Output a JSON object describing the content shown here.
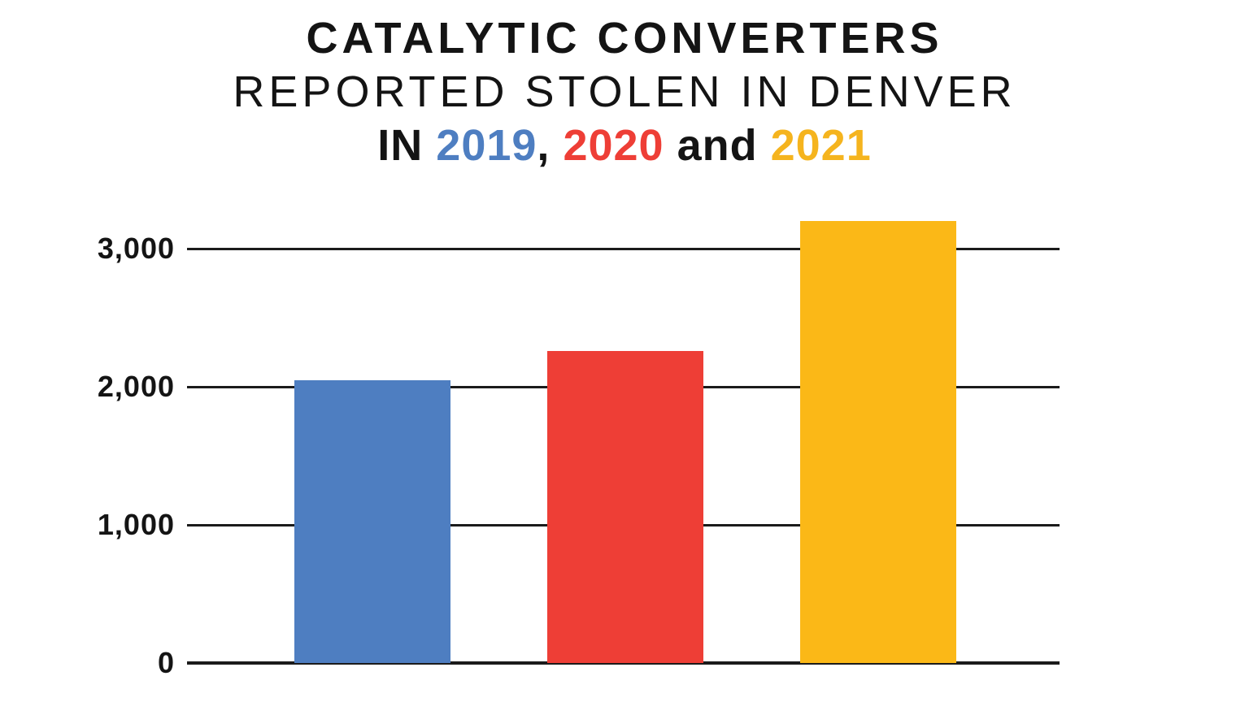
{
  "title": {
    "line1": "CATALYTIC CONVERTERS",
    "line2": "REPORTED STOLEN IN DENVER",
    "line3_segments": [
      {
        "text": "IN ",
        "color": "#141414",
        "name": "title-word-in"
      },
      {
        "text": "2019",
        "color": "#4E7EC1",
        "name": "title-year-2019"
      },
      {
        "text": ", ",
        "color": "#141414",
        "name": "title-comma"
      },
      {
        "text": "2020",
        "color": "#EE3E36",
        "name": "title-year-2020"
      },
      {
        "text": " and ",
        "color": "#141414",
        "name": "title-word-and"
      },
      {
        "text": "2021",
        "color": "#F5B41E",
        "name": "title-year-2021"
      }
    ]
  },
  "chart_data": {
    "type": "bar",
    "title": "CATALYTIC CONVERTERS REPORTED STOLEN IN DENVER IN 2019, 2020 and 2021",
    "categories": [
      "2019",
      "2020",
      "2021"
    ],
    "values": [
      2050,
      2260,
      3200
    ],
    "bar_colors": [
      "#4E7EC1",
      "#EE3E36",
      "#FBB817"
    ],
    "xlabel": "",
    "ylabel": "",
    "ylim": [
      0,
      3300
    ],
    "yticks": [
      {
        "value": 0,
        "label": "0"
      },
      {
        "value": 1000,
        "label": "1,000"
      },
      {
        "value": 2000,
        "label": "2,000"
      },
      {
        "value": 3000,
        "label": "3,000"
      }
    ],
    "grid": "horizontal-black-lines",
    "legend": "none (colors keyed to years in title)",
    "gridline_color": "#1B1B1B",
    "tick_label_color": "#141414",
    "background_color": "#FFFFFF"
  }
}
